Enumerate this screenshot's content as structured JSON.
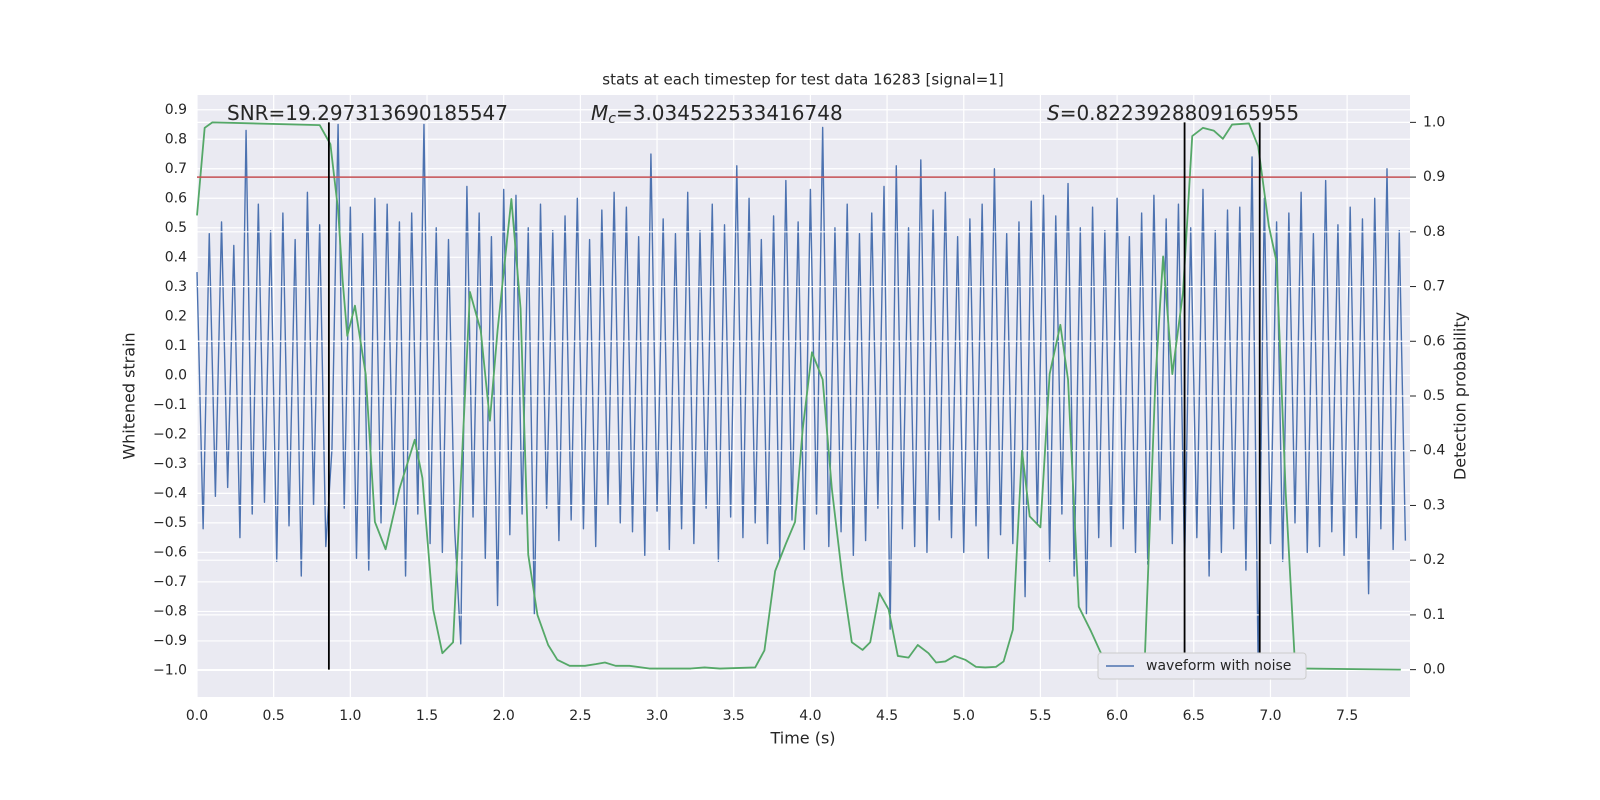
{
  "chart_data": {
    "type": "line",
    "title": "stats at each timestep for test data 16283 [signal=1]",
    "xlabel": "Time (s)",
    "ylabel": "Whitened strain",
    "y2label": "Detection probability",
    "annotations": [
      {
        "text": "SNR=19.297313690185547"
      },
      {
        "symbol": "M",
        "sub": "c",
        "text": "=3.034522533416748"
      },
      {
        "symbol": "S",
        "text": "=0.8223928809165955"
      }
    ],
    "xlim": [
      0,
      7.91
    ],
    "ylim": [
      -1.09,
      0.95
    ],
    "y2lim": [
      -0.05,
      1.05
    ],
    "xticks": [
      {
        "value": 0,
        "label": "0.0"
      },
      0.5,
      {
        "value": 1,
        "label": "1.0"
      },
      1.5,
      {
        "value": 2,
        "label": "2.0"
      },
      2.5,
      {
        "value": 3,
        "label": "3.0"
      },
      3.5,
      {
        "value": 4,
        "label": "4.0"
      },
      4.5,
      {
        "value": 5,
        "label": "5.0"
      },
      5.5,
      {
        "value": 6,
        "label": "6.0"
      },
      6.5,
      {
        "value": 7,
        "label": "7.0"
      },
      7.5
    ],
    "yticks": [
      0.9,
      0.8,
      0.7,
      0.6,
      0.5,
      0.4,
      0.3,
      0.2,
      0.1,
      {
        "value": 0,
        "label": "0.0"
      },
      {
        "value": -0.1,
        "label": "−0.1"
      },
      {
        "value": -0.2,
        "label": "−0.2"
      },
      {
        "value": -0.3,
        "label": "−0.3"
      },
      {
        "value": -0.4,
        "label": "−0.4"
      },
      {
        "value": -0.5,
        "label": "−0.5"
      },
      {
        "value": -0.6,
        "label": "−0.6"
      },
      {
        "value": -0.7,
        "label": "−0.7"
      },
      {
        "value": -0.8,
        "label": "−0.8"
      },
      {
        "value": -0.9,
        "label": "−0.9"
      },
      {
        "value": -1,
        "label": "−1.0"
      }
    ],
    "y2ticks": [
      {
        "value": 0,
        "label": "0.0"
      },
      0.1,
      0.2,
      0.3,
      0.4,
      0.5,
      0.6,
      0.7,
      0.8,
      0.9,
      {
        "value": 1,
        "label": "1.0"
      }
    ],
    "grid": true,
    "legend": "lower right",
    "threshold": {
      "value": 0.9,
      "axis": "y2",
      "color": "#c44e52"
    },
    "vlines": [
      0.86,
      6.44,
      6.93
    ],
    "vline_span": [
      0,
      1
    ],
    "vline_color": "#000000",
    "series": [
      {
        "name": "waveform with noise",
        "color": "#4c72b0",
        "x": [
          0,
          0.04,
          0.08,
          0.12,
          0.16,
          0.2,
          0.24,
          0.28,
          0.32,
          0.36,
          0.4,
          0.44,
          0.48,
          0.52,
          0.56,
          0.6,
          0.64,
          0.68,
          0.72,
          0.76,
          0.8,
          0.84,
          0.88,
          0.92,
          0.96,
          1,
          1.04,
          1.08,
          1.12,
          1.16,
          1.2,
          1.24,
          1.28,
          1.32,
          1.36,
          1.4,
          1.44,
          1.48,
          1.52,
          1.56,
          1.6,
          1.64,
          1.68,
          1.72,
          1.76,
          1.8,
          1.84,
          1.88,
          1.92,
          1.96,
          2,
          2.04,
          2.08,
          2.12,
          2.16,
          2.2,
          2.24,
          2.28,
          2.32,
          2.36,
          2.4,
          2.44,
          2.48,
          2.52,
          2.56,
          2.6,
          2.64,
          2.68,
          2.72,
          2.76,
          2.8,
          2.84,
          2.88,
          2.92,
          2.96,
          3,
          3.04,
          3.08,
          3.12,
          3.16,
          3.2,
          3.24,
          3.28,
          3.32,
          3.36,
          3.4,
          3.44,
          3.48,
          3.52,
          3.56,
          3.6,
          3.64,
          3.68,
          3.72,
          3.76,
          3.8,
          3.84,
          3.88,
          3.92,
          3.96,
          4,
          4.04,
          4.08,
          4.12,
          4.16,
          4.2,
          4.24,
          4.28,
          4.32,
          4.36,
          4.4,
          4.44,
          4.48,
          4.52,
          4.56,
          4.6,
          4.64,
          4.68,
          4.72,
          4.76,
          4.8,
          4.84,
          4.88,
          4.92,
          4.96,
          5,
          5.04,
          5.08,
          5.12,
          5.16,
          5.2,
          5.24,
          5.28,
          5.32,
          5.36,
          5.4,
          5.44,
          5.48,
          5.52,
          5.56,
          5.6,
          5.64,
          5.68,
          5.72,
          5.76,
          5.8,
          5.84,
          5.88,
          5.92,
          5.96,
          6,
          6.04,
          6.08,
          6.12,
          6.16,
          6.2,
          6.24,
          6.28,
          6.32,
          6.36,
          6.4,
          6.44,
          6.48,
          6.52,
          6.56,
          6.6,
          6.64,
          6.68,
          6.72,
          6.76,
          6.8,
          6.84,
          6.88,
          6.92,
          6.96,
          7,
          7.04,
          7.08,
          7.12,
          7.16,
          7.2,
          7.24,
          7.28,
          7.32,
          7.36,
          7.4,
          7.44,
          7.48,
          7.52,
          7.56,
          7.6,
          7.64,
          7.68,
          7.72,
          7.76,
          7.8,
          7.84,
          7.88
        ],
        "values": [
          0.35,
          -0.52,
          0.48,
          -0.41,
          0.52,
          -0.38,
          0.44,
          -0.55,
          0.83,
          -0.47,
          0.58,
          -0.43,
          0.49,
          -0.63,
          0.55,
          -0.51,
          0.46,
          -0.68,
          0.62,
          -0.44,
          0.51,
          -0.58,
          -0.25,
          0.85,
          -0.45,
          0.57,
          -0.62,
          0.48,
          -0.66,
          0.6,
          -0.5,
          0.58,
          -0.44,
          0.52,
          -0.68,
          0.55,
          -0.47,
          0.85,
          -0.57,
          0.5,
          -0.6,
          0.46,
          -0.52,
          -0.91,
          0.64,
          -0.48,
          0.55,
          -0.62,
          0.47,
          -0.78,
          0.63,
          -0.54,
          0.61,
          -0.47,
          0.5,
          -0.81,
          0.58,
          -0.45,
          0.49,
          -0.56,
          0.54,
          -0.49,
          0.6,
          -0.52,
          0.46,
          -0.58,
          0.56,
          -0.44,
          0.62,
          -0.5,
          0.57,
          -0.53,
          0.47,
          -0.61,
          0.75,
          -0.46,
          0.53,
          -0.59,
          0.48,
          -0.52,
          0.62,
          -0.57,
          0.49,
          -0.45,
          0.58,
          -0.63,
          0.51,
          -0.48,
          0.71,
          -0.55,
          0.6,
          -0.5,
          0.46,
          -0.57,
          0.54,
          -0.62,
          0.66,
          -0.49,
          0.52,
          -0.59,
          0.63,
          -0.47,
          0.84,
          -0.58,
          0.5,
          -0.53,
          0.58,
          -0.61,
          0.48,
          -0.56,
          0.55,
          -0.45,
          0.64,
          -0.86,
          0.71,
          -0.52,
          0.5,
          -0.58,
          0.73,
          -0.6,
          0.56,
          -0.49,
          0.62,
          -0.55,
          0.47,
          -0.6,
          0.53,
          -0.51,
          0.58,
          -0.62,
          0.7,
          -0.54,
          0.48,
          -0.57,
          0.52,
          -0.75,
          0.59,
          -0.5,
          0.61,
          -0.63,
          0.54,
          -0.47,
          0.65,
          -0.68,
          0.5,
          -0.81,
          0.57,
          -0.55,
          0.49,
          -0.58,
          0.6,
          -0.52,
          0.47,
          -0.6,
          0.55,
          -0.64,
          0.61,
          -0.49,
          0.53,
          -0.57,
          0.58,
          -0.65,
          0.5,
          -0.55,
          0.63,
          -0.68,
          0.49,
          -0.6,
          0.56,
          -0.52,
          0.57,
          -0.66,
          0.74,
          -1.0,
          0.6,
          -0.57,
          0.52,
          -0.63,
          0.55,
          -0.5,
          0.62,
          -0.6,
          0.48,
          -0.58,
          0.66,
          -0.53,
          0.51,
          -0.61,
          0.57,
          -0.55,
          0.53,
          -0.74,
          0.6,
          -0.52,
          0.7,
          -0.59,
          0.49,
          -0.56
        ]
      },
      {
        "color": "#55a868",
        "axis": "y2",
        "x": [
          0,
          0.05,
          0.1,
          0.8,
          0.87,
          0.92,
          0.95,
          0.98,
          1.03,
          1.1,
          1.16,
          1.23,
          1.32,
          1.42,
          1.47,
          1.54,
          1.6,
          1.67,
          1.78,
          1.85,
          1.91,
          1.96,
          2.05,
          2.11,
          2.16,
          2.22,
          2.29,
          2.35,
          2.43,
          2.53,
          2.6,
          2.66,
          2.73,
          2.82,
          2.95,
          3.22,
          3.31,
          3.41,
          3.64,
          3.7,
          3.77,
          3.84,
          3.9,
          3.95,
          4.01,
          4.08,
          4.14,
          4.21,
          4.27,
          4.34,
          4.39,
          4.45,
          4.51,
          4.57,
          4.64,
          4.7,
          4.77,
          4.82,
          4.88,
          4.94,
          5.01,
          5.08,
          5.14,
          5.21,
          5.26,
          5.32,
          5.38,
          5.43,
          5.5,
          5.56,
          5.63,
          5.68,
          5.75,
          5.83,
          5.89,
          5.94,
          6.01,
          6.12,
          6.18,
          6.25,
          6.3,
          6.36,
          6.43,
          6.49,
          6.56,
          6.63,
          6.69,
          6.75,
          6.86,
          6.92,
          6.99,
          7.04,
          7.1,
          7.16,
          7.23,
          7.85
        ],
        "values": [
          0.83,
          0.99,
          1.0,
          0.995,
          0.96,
          0.84,
          0.71,
          0.61,
          0.665,
          0.54,
          0.27,
          0.22,
          0.33,
          0.42,
          0.35,
          0.11,
          0.03,
          0.05,
          0.69,
          0.62,
          0.455,
          0.62,
          0.86,
          0.66,
          0.21,
          0.1,
          0.045,
          0.018,
          0.007,
          0.007,
          0.01,
          0.013,
          0.007,
          0.007,
          0.002,
          0.002,
          0.004,
          0.002,
          0.004,
          0.035,
          0.18,
          0.23,
          0.27,
          0.44,
          0.58,
          0.53,
          0.33,
          0.165,
          0.05,
          0.036,
          0.05,
          0.14,
          0.11,
          0.025,
          0.022,
          0.045,
          0.03,
          0.013,
          0.015,
          0.025,
          0.018,
          0.005,
          0.004,
          0.005,
          0.015,
          0.073,
          0.4,
          0.28,
          0.26,
          0.54,
          0.63,
          0.53,
          0.115,
          0.07,
          0.033,
          0.007,
          0.004,
          0.004,
          0.015,
          0.53,
          0.755,
          0.54,
          0.69,
          0.975,
          0.99,
          0.985,
          0.97,
          0.996,
          0.998,
          0.956,
          0.81,
          0.745,
          0.32,
          0.009,
          0.002,
          0
        ]
      }
    ]
  }
}
